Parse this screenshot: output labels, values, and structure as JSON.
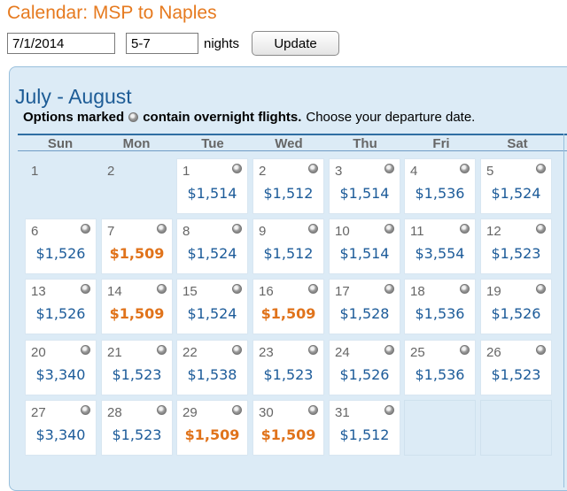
{
  "page": {
    "title": "Calendar: MSP to Naples"
  },
  "search": {
    "date_value": "7/1/2014",
    "nights_value": "5-7",
    "nights_label": "nights",
    "update_label": "Update"
  },
  "calendar": {
    "month_title": "July - August",
    "note_bold_1": "Options marked",
    "note_bold_2": "contain overnight flights.",
    "note_text": "Choose your departure date.",
    "overnight_icon": "overnight-flight-icon",
    "day_names": [
      "Sun",
      "Mon",
      "Tue",
      "Wed",
      "Thu",
      "Fri",
      "Sat"
    ],
    "weeks": [
      [
        {
          "date": "1",
          "price": null,
          "overnight": false,
          "low": false,
          "inactive": true
        },
        {
          "date": "2",
          "price": null,
          "overnight": false,
          "low": false,
          "inactive": true
        },
        {
          "date": "1",
          "price": "$1,514",
          "overnight": true,
          "low": false
        },
        {
          "date": "2",
          "price": "$1,512",
          "overnight": true,
          "low": false
        },
        {
          "date": "3",
          "price": "$1,514",
          "overnight": true,
          "low": false
        },
        {
          "date": "4",
          "price": "$1,536",
          "overnight": true,
          "low": false
        },
        {
          "date": "5",
          "price": "$1,524",
          "overnight": true,
          "low": false
        }
      ],
      [
        {
          "date": "6",
          "price": "$1,526",
          "overnight": true,
          "low": false
        },
        {
          "date": "7",
          "price": "$1,509",
          "overnight": true,
          "low": true
        },
        {
          "date": "8",
          "price": "$1,524",
          "overnight": true,
          "low": false
        },
        {
          "date": "9",
          "price": "$1,512",
          "overnight": true,
          "low": false
        },
        {
          "date": "10",
          "price": "$1,514",
          "overnight": true,
          "low": false
        },
        {
          "date": "11",
          "price": "$3,554",
          "overnight": true,
          "low": false
        },
        {
          "date": "12",
          "price": "$1,523",
          "overnight": true,
          "low": false
        }
      ],
      [
        {
          "date": "13",
          "price": "$1,526",
          "overnight": true,
          "low": false
        },
        {
          "date": "14",
          "price": "$1,509",
          "overnight": true,
          "low": true
        },
        {
          "date": "15",
          "price": "$1,524",
          "overnight": true,
          "low": false
        },
        {
          "date": "16",
          "price": "$1,509",
          "overnight": true,
          "low": true
        },
        {
          "date": "17",
          "price": "$1,528",
          "overnight": true,
          "low": false
        },
        {
          "date": "18",
          "price": "$1,536",
          "overnight": true,
          "low": false
        },
        {
          "date": "19",
          "price": "$1,526",
          "overnight": true,
          "low": false
        }
      ],
      [
        {
          "date": "20",
          "price": "$3,340",
          "overnight": true,
          "low": false
        },
        {
          "date": "21",
          "price": "$1,523",
          "overnight": true,
          "low": false
        },
        {
          "date": "22",
          "price": "$1,538",
          "overnight": true,
          "low": false
        },
        {
          "date": "23",
          "price": "$1,523",
          "overnight": true,
          "low": false
        },
        {
          "date": "24",
          "price": "$1,526",
          "overnight": true,
          "low": false
        },
        {
          "date": "25",
          "price": "$1,536",
          "overnight": true,
          "low": false
        },
        {
          "date": "26",
          "price": "$1,523",
          "overnight": true,
          "low": false
        }
      ],
      [
        {
          "date": "27",
          "price": "$3,340",
          "overnight": true,
          "low": false
        },
        {
          "date": "28",
          "price": "$1,523",
          "overnight": true,
          "low": false
        },
        {
          "date": "29",
          "price": "$1,509",
          "overnight": true,
          "low": true
        },
        {
          "date": "30",
          "price": "$1,509",
          "overnight": true,
          "low": true
        },
        {
          "date": "31",
          "price": "$1,512",
          "overnight": true,
          "low": false
        },
        {
          "date": null,
          "price": null,
          "overnight": false,
          "low": false,
          "empty": true
        },
        {
          "date": null,
          "price": null,
          "overnight": false,
          "low": false,
          "empty": true
        }
      ]
    ]
  },
  "colors": {
    "title_orange": "#e67a1f",
    "price_blue": "#1c5b99",
    "lowest_price_orange": "#e0731b",
    "panel_background": "#dcebf6",
    "month_title_blue": "#1d5c96"
  }
}
